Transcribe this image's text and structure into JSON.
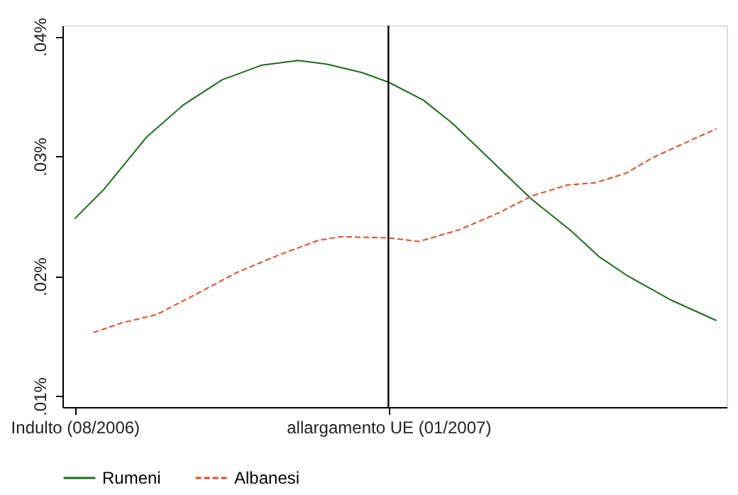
{
  "chart_data": {
    "type": "line",
    "x": [
      "2006-08-01",
      "2006-08-15",
      "2006-09-05",
      "2006-09-23",
      "2006-10-12",
      "2006-10-31",
      "2006-11-18",
      "2006-12-02",
      "2006-12-19",
      "2007-01-01",
      "2007-01-18",
      "2007-02-01",
      "2007-02-15",
      "2007-03-01",
      "2007-03-12",
      "2007-03-31",
      "2007-04-14",
      "2007-04-27",
      "2007-05-19",
      "2007-06-10"
    ],
    "series": [
      {
        "name": "Rumeni",
        "color": "#1e6b1e",
        "line_style": "solid",
        "values": [
          0.0248,
          0.0272,
          0.0316,
          0.0343,
          0.0364,
          0.0376,
          0.038,
          0.0377,
          0.037,
          0.0362,
          0.0347,
          0.0328,
          0.0305,
          0.0282,
          0.0264,
          0.0238,
          0.0216,
          0.0201,
          0.018,
          0.0163
        ]
      },
      {
        "name": "Albanesi",
        "color": "#d9502e",
        "line_style": "dashed",
        "x": [
          "2006-08-10",
          "2006-08-24",
          "2006-09-10",
          "2006-09-28",
          "2006-10-19",
          "2006-11-09",
          "2006-11-28",
          "2006-12-09",
          "2007-01-01",
          "2007-01-16",
          "2007-02-05",
          "2007-02-24",
          "2007-03-12",
          "2007-03-29",
          "2007-04-12",
          "2007-04-27",
          "2007-05-10",
          "2007-05-24",
          "2007-06-10"
        ],
        "values": [
          0.0153,
          0.0161,
          0.0168,
          0.0184,
          0.0203,
          0.0218,
          0.023,
          0.0233,
          0.0232,
          0.0229,
          0.0239,
          0.0253,
          0.0267,
          0.0276,
          0.0278,
          0.0286,
          0.0299,
          0.031,
          0.0323
        ]
      }
    ],
    "xlim": [
      "2006-07-26",
      "2007-06-15"
    ],
    "xticks": [
      {
        "value": "2006-08-01",
        "label": "Indulto (08/2006)"
      },
      {
        "value": "2007-01-01",
        "label": "allargamento UE (01/2007)"
      }
    ],
    "ylim": [
      0.00908,
      0.04092
    ],
    "yticks": [
      {
        "value": 0.01,
        "label": ".01%"
      },
      {
        "value": 0.02,
        "label": ".02%"
      },
      {
        "value": 0.03,
        "label": ".03%"
      },
      {
        "value": 0.04,
        "label": ".04%"
      }
    ],
    "ref_lines": [
      {
        "axis": "x",
        "value": "2007-01-01",
        "color": "#000000"
      }
    ],
    "grid": false,
    "legend": "bottom"
  }
}
